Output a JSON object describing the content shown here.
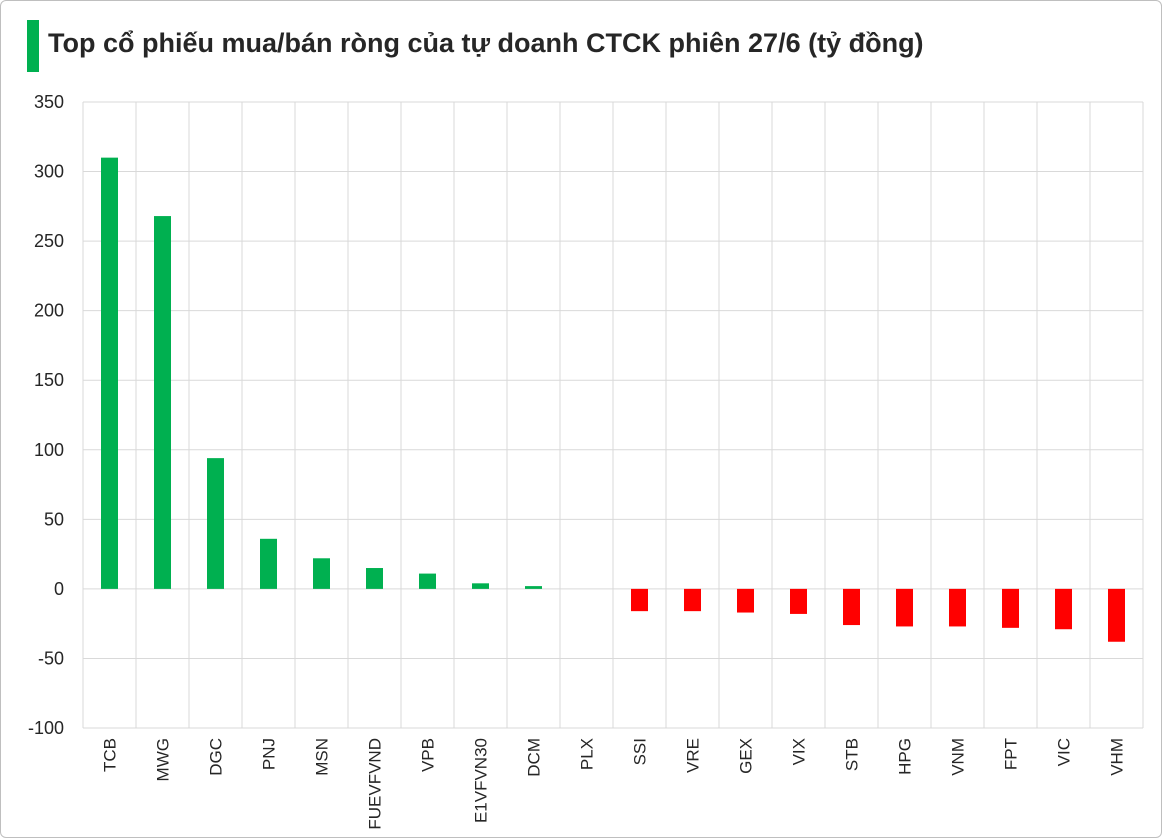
{
  "colors": {
    "accent": "#00b050",
    "positive": "#00b050",
    "negative": "#ff0000",
    "grid": "#d9d9d9",
    "text": "#262626"
  },
  "chart_data": {
    "type": "bar",
    "title": "Top cổ phiếu mua/bán ròng của tự doanh CTCK phiên 27/6 (tỷ đồng)",
    "xlabel": "",
    "ylabel": "",
    "categories": [
      "TCB",
      "MWG",
      "DGC",
      "PNJ",
      "MSN",
      "FUEVFVND",
      "VPB",
      "E1VFVN30",
      "DCM",
      "PLX",
      "SSI",
      "VRE",
      "GEX",
      "VIX",
      "STB",
      "HPG",
      "VNM",
      "FPT",
      "VIC",
      "VHM"
    ],
    "values": [
      310,
      268,
      94,
      36,
      22,
      15,
      11,
      4,
      2,
      0,
      -16,
      -16,
      -17,
      -18,
      -26,
      -27,
      -27,
      -28,
      -29,
      -38
    ],
    "ylim": [
      -100,
      350
    ],
    "yticks": [
      "350",
      "300",
      "250",
      "200",
      "150",
      "100",
      "50",
      "0",
      "-50",
      "-100"
    ],
    "ytick_values": [
      350,
      300,
      250,
      200,
      150,
      100,
      50,
      0,
      -50,
      -100
    ],
    "grid": true,
    "legend": "none"
  }
}
